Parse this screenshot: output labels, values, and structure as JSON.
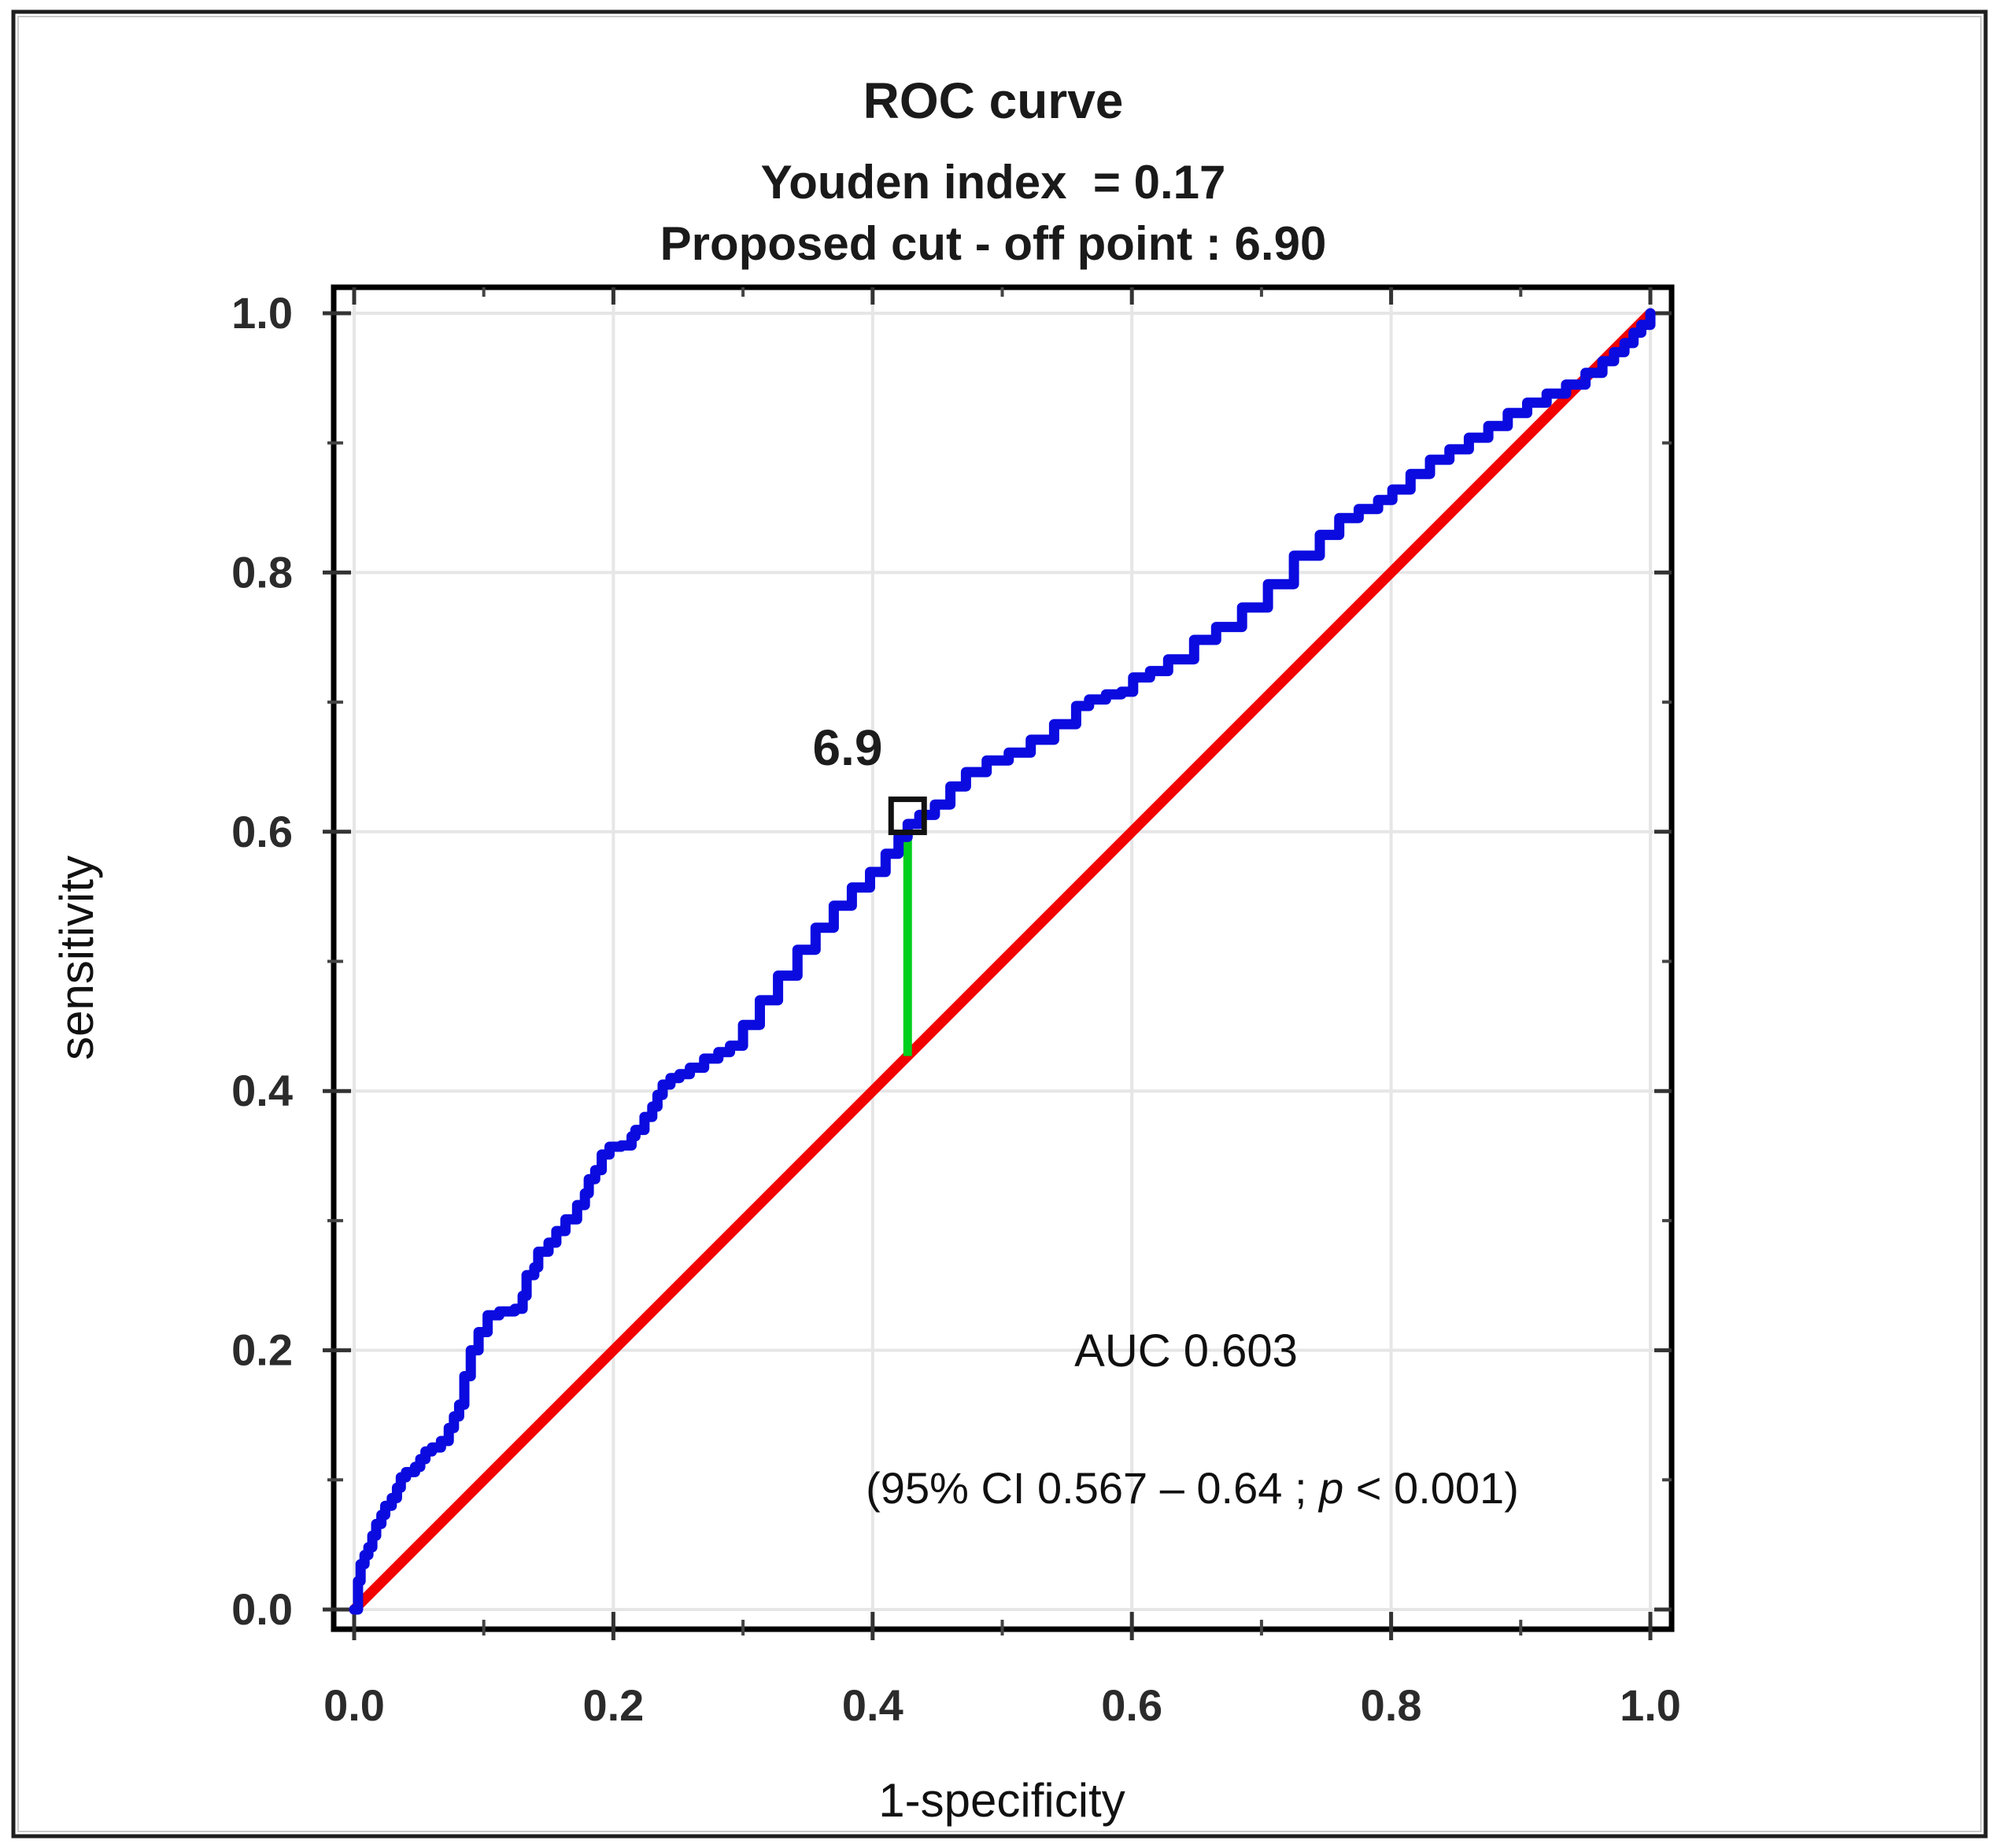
{
  "header": {
    "title": "ROC curve",
    "subtitle1": "Youden index  = 0.17",
    "subtitle2": "Proposed cut - off point : 6.90"
  },
  "axes": {
    "x_label": "1-specificity",
    "y_label": "sensitivity",
    "x_ticks": [
      "0.0",
      "0.2",
      "0.4",
      "0.6",
      "0.8",
      "1.0"
    ],
    "y_ticks": [
      "0.0",
      "0.2",
      "0.4",
      "0.6",
      "0.8",
      "1.0"
    ]
  },
  "annotations": {
    "cutoff_label": "6.9",
    "auc_text": "AUC 0.603",
    "ci_prefix": "(95% CI 0.567 – 0.64 ; ",
    "ci_p": "p",
    "ci_suffix": " < 0.001)"
  },
  "colors": {
    "roc_curve": "#0b0be0",
    "diagonal": "#f20000",
    "youden_segment": "#00cf1d",
    "marker": "#111111",
    "grid": "#e6e6e6",
    "ticks": "#333333",
    "plot_border": "#000000",
    "outer_frame": "#1f1f1f"
  },
  "chart_data": {
    "type": "line",
    "title": "ROC curve",
    "subtitle": [
      "Youden index = 0.17",
      "Proposed cut - off point : 6.90"
    ],
    "xlabel": "1-specificity",
    "ylabel": "sensitivity",
    "xlim": [
      0,
      1
    ],
    "ylim": [
      0,
      1
    ],
    "grid": true,
    "legend": "none",
    "auc": 0.603,
    "ci_95": [
      0.567,
      0.64
    ],
    "p_value": "< 0.001",
    "youden_index": 0.17,
    "proposed_cutoff": 6.9,
    "cutoff_point": {
      "x": 0.427,
      "y": 0.605
    },
    "series": [
      {
        "name": "ROC curve",
        "style": "step",
        "color": "#0b0be0",
        "points": [
          [
            0.0,
            0.0
          ],
          [
            0.003,
            0.022
          ],
          [
            0.005,
            0.035
          ],
          [
            0.008,
            0.042
          ],
          [
            0.011,
            0.048
          ],
          [
            0.014,
            0.057
          ],
          [
            0.017,
            0.066
          ],
          [
            0.021,
            0.073
          ],
          [
            0.024,
            0.08
          ],
          [
            0.029,
            0.086
          ],
          [
            0.033,
            0.094
          ],
          [
            0.036,
            0.102
          ],
          [
            0.04,
            0.106
          ],
          [
            0.047,
            0.11
          ],
          [
            0.051,
            0.116
          ],
          [
            0.055,
            0.122
          ],
          [
            0.06,
            0.125
          ],
          [
            0.067,
            0.13
          ],
          [
            0.073,
            0.14
          ],
          [
            0.077,
            0.149
          ],
          [
            0.081,
            0.158
          ],
          [
            0.085,
            0.18
          ],
          [
            0.09,
            0.2
          ],
          [
            0.096,
            0.214
          ],
          [
            0.103,
            0.227
          ],
          [
            0.112,
            0.23
          ],
          [
            0.124,
            0.232
          ],
          [
            0.13,
            0.242
          ],
          [
            0.133,
            0.258
          ],
          [
            0.139,
            0.264
          ],
          [
            0.142,
            0.276
          ],
          [
            0.15,
            0.283
          ],
          [
            0.156,
            0.292
          ],
          [
            0.163,
            0.301
          ],
          [
            0.172,
            0.312
          ],
          [
            0.178,
            0.321
          ],
          [
            0.181,
            0.332
          ],
          [
            0.186,
            0.339
          ],
          [
            0.191,
            0.351
          ],
          [
            0.197,
            0.357
          ],
          [
            0.206,
            0.358
          ],
          [
            0.214,
            0.365
          ],
          [
            0.217,
            0.37
          ],
          [
            0.224,
            0.38
          ],
          [
            0.23,
            0.388
          ],
          [
            0.234,
            0.397
          ],
          [
            0.238,
            0.405
          ],
          [
            0.244,
            0.41
          ],
          [
            0.251,
            0.413
          ],
          [
            0.259,
            0.418
          ],
          [
            0.27,
            0.425
          ],
          [
            0.281,
            0.43
          ],
          [
            0.29,
            0.435
          ],
          [
            0.3,
            0.451
          ],
          [
            0.313,
            0.47
          ],
          [
            0.327,
            0.489
          ],
          [
            0.342,
            0.509
          ],
          [
            0.356,
            0.526
          ],
          [
            0.37,
            0.543
          ],
          [
            0.384,
            0.557
          ],
          [
            0.398,
            0.569
          ],
          [
            0.41,
            0.583
          ],
          [
            0.42,
            0.596
          ],
          [
            0.427,
            0.606
          ],
          [
            0.436,
            0.613
          ],
          [
            0.448,
            0.621
          ],
          [
            0.46,
            0.635
          ],
          [
            0.472,
            0.646
          ],
          [
            0.488,
            0.655
          ],
          [
            0.505,
            0.661
          ],
          [
            0.522,
            0.671
          ],
          [
            0.54,
            0.683
          ],
          [
            0.557,
            0.697
          ],
          [
            0.567,
            0.702
          ],
          [
            0.58,
            0.706
          ],
          [
            0.592,
            0.708
          ],
          [
            0.601,
            0.719
          ],
          [
            0.614,
            0.724
          ],
          [
            0.628,
            0.733
          ],
          [
            0.648,
            0.748
          ],
          [
            0.665,
            0.758
          ],
          [
            0.685,
            0.773
          ],
          [
            0.705,
            0.791
          ],
          [
            0.725,
            0.813
          ],
          [
            0.745,
            0.829
          ],
          [
            0.76,
            0.842
          ],
          [
            0.775,
            0.849
          ],
          [
            0.79,
            0.856
          ],
          [
            0.801,
            0.864
          ],
          [
            0.815,
            0.876
          ],
          [
            0.83,
            0.887
          ],
          [
            0.845,
            0.895
          ],
          [
            0.86,
            0.904
          ],
          [
            0.875,
            0.913
          ],
          [
            0.89,
            0.923
          ],
          [
            0.905,
            0.931
          ],
          [
            0.92,
            0.938
          ],
          [
            0.935,
            0.945
          ],
          [
            0.95,
            0.954
          ],
          [
            0.963,
            0.963
          ],
          [
            0.972,
            0.97
          ],
          [
            0.98,
            0.977
          ],
          [
            0.987,
            0.985
          ],
          [
            0.993,
            0.991
          ],
          [
            1.0,
            1.0
          ]
        ]
      },
      {
        "name": "reference diagonal",
        "style": "line",
        "color": "#f20000",
        "points": [
          [
            0,
            0
          ],
          [
            1,
            1
          ]
        ]
      },
      {
        "name": "Youden index segment",
        "style": "line",
        "color": "#00cf1d",
        "points": [
          [
            0.427,
            0.605
          ],
          [
            0.427,
            0.427
          ]
        ]
      }
    ]
  }
}
